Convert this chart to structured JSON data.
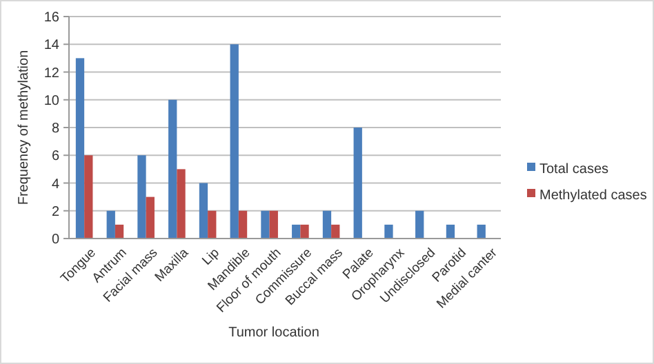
{
  "chart_data": {
    "type": "bar",
    "xlabel": "Tumor location",
    "ylabel": "Frequency of methylation",
    "categories": [
      "Tongue",
      "Antrum",
      "Facial mass",
      "Maxilla",
      "Lip",
      "Mandible",
      "Floor of mouth",
      "Commissure",
      "Buccal mass",
      "Palate",
      "Oropharynx",
      "Undisclosed",
      "Parotid",
      "Medial canter"
    ],
    "series": [
      {
        "name": "Total cases",
        "color": "#4a7ebb",
        "values": [
          13,
          2,
          6,
          10,
          4,
          14,
          2,
          1,
          2,
          8,
          1,
          2,
          1,
          1
        ]
      },
      {
        "name": "Methylated cases",
        "color": "#be4b48",
        "values": [
          6,
          1,
          3,
          5,
          2,
          2,
          2,
          1,
          1,
          0,
          0,
          0,
          0,
          0
        ]
      }
    ],
    "ylim": [
      0,
      16
    ],
    "yticks": [
      0,
      2,
      4,
      6,
      8,
      10,
      12,
      14,
      16
    ],
    "grid": "y",
    "legend": "right"
  }
}
